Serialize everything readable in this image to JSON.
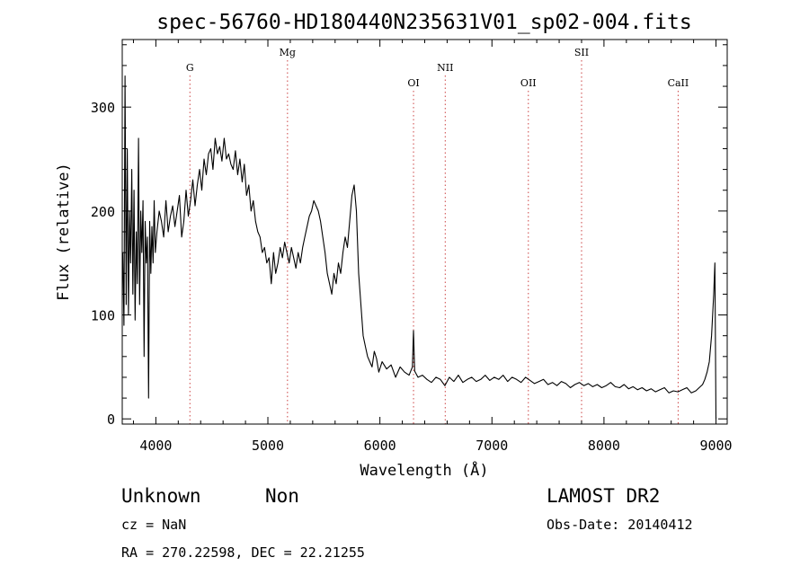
{
  "chart_data": {
    "type": "line",
    "title": "spec-56760-HD180440N235631V01_sp02-004.fits",
    "xlabel": "Wavelength (Å)",
    "ylabel": "Flux (relative)",
    "xlim": [
      3700,
      9100
    ],
    "ylim": [
      -5,
      365
    ],
    "x_ticks": [
      {
        "value": 4000,
        "label": "4000"
      },
      {
        "value": 5000,
        "label": "5000"
      },
      {
        "value": 6000,
        "label": "6000"
      },
      {
        "value": 7000,
        "label": "7000"
      },
      {
        "value": 8000,
        "label": "8000"
      },
      {
        "value": 9000,
        "label": "9000"
      }
    ],
    "y_ticks": [
      {
        "value": 0,
        "label": "0"
      },
      {
        "value": 100,
        "label": "100"
      },
      {
        "value": 200,
        "label": "200"
      },
      {
        "value": 300,
        "label": "300"
      }
    ],
    "grid": false,
    "lines": [
      {
        "label": "G",
        "wavelength": 4304,
        "label_level": 1
      },
      {
        "label": "Mg",
        "wavelength": 5175,
        "label_level": 0
      },
      {
        "label": "OI",
        "wavelength": 6300,
        "label_level": 2
      },
      {
        "label": "NII",
        "wavelength": 6583,
        "label_level": 1
      },
      {
        "label": "OII",
        "wavelength": 7325,
        "label_level": 2
      },
      {
        "label": "SII",
        "wavelength": 7800,
        "label_level": 0
      },
      {
        "label": "CaII",
        "wavelength": 8662,
        "label_level": 2
      }
    ],
    "series": [
      {
        "x": [
          3705,
          3715,
          3725,
          3735,
          3745,
          3755,
          3765,
          3775,
          3785,
          3795,
          3805,
          3815,
          3825,
          3835,
          3845,
          3855,
          3865,
          3875,
          3885,
          3895,
          3905,
          3915,
          3925,
          3935,
          3945,
          3955,
          3965,
          3975,
          3985,
          3995,
          4010,
          4030,
          4050,
          4070,
          4090,
          4110,
          4130,
          4150,
          4170,
          4190,
          4210,
          4230,
          4250,
          4270,
          4290,
          4310,
          4330,
          4350,
          4370,
          4390,
          4410,
          4430,
          4450,
          4470,
          4490,
          4510,
          4530,
          4550,
          4570,
          4590,
          4610,
          4630,
          4650,
          4670,
          4690,
          4710,
          4730,
          4750,
          4770,
          4790,
          4810,
          4830,
          4850,
          4870,
          4890,
          4910,
          4930,
          4950,
          4970,
          4990,
          5010,
          5030,
          5050,
          5070,
          5090,
          5110,
          5130,
          5150,
          5170,
          5190,
          5210,
          5230,
          5250,
          5270,
          5290,
          5310,
          5330,
          5350,
          5370,
          5390,
          5410,
          5430,
          5450,
          5470,
          5490,
          5510,
          5530,
          5550,
          5570,
          5590,
          5610,
          5630,
          5650,
          5670,
          5690,
          5710,
          5730,
          5750,
          5770,
          5790,
          5810,
          5830,
          5850,
          5870,
          5890,
          5910,
          5930,
          5950,
          5970,
          5990,
          6020,
          6060,
          6100,
          6140,
          6180,
          6220,
          6260,
          6290,
          6300,
          6310,
          6340,
          6380,
          6420,
          6460,
          6500,
          6540,
          6580,
          6620,
          6660,
          6700,
          6740,
          6780,
          6820,
          6860,
          6900,
          6940,
          6980,
          7020,
          7060,
          7100,
          7140,
          7180,
          7220,
          7260,
          7300,
          7340,
          7380,
          7420,
          7460,
          7500,
          7540,
          7580,
          7620,
          7660,
          7700,
          7740,
          7780,
          7820,
          7860,
          7900,
          7940,
          7980,
          8020,
          8060,
          8100,
          8140,
          8180,
          8220,
          8260,
          8300,
          8340,
          8380,
          8420,
          8460,
          8500,
          8540,
          8580,
          8620,
          8660,
          8700,
          8740,
          8780,
          8820,
          8850,
          8880,
          8900,
          8920,
          8940,
          8960,
          8980,
          8990,
          9000
        ],
        "y": [
          160,
          90,
          330,
          110,
          260,
          100,
          200,
          150,
          240,
          120,
          220,
          95,
          180,
          130,
          270,
          110,
          200,
          160,
          210,
          60,
          190,
          150,
          175,
          20,
          190,
          140,
          185,
          150,
          210,
          160,
          180,
          200,
          190,
          175,
          210,
          180,
          195,
          205,
          185,
          200,
          215,
          175,
          190,
          220,
          195,
          210,
          230,
          205,
          225,
          240,
          220,
          250,
          235,
          255,
          260,
          240,
          270,
          255,
          262,
          248,
          270,
          250,
          255,
          245,
          240,
          258,
          235,
          250,
          228,
          245,
          215,
          225,
          200,
          210,
          190,
          180,
          175,
          160,
          165,
          150,
          155,
          130,
          160,
          140,
          150,
          165,
          155,
          170,
          160,
          150,
          165,
          155,
          145,
          160,
          150,
          165,
          175,
          185,
          195,
          200,
          210,
          205,
          200,
          190,
          175,
          160,
          140,
          130,
          120,
          140,
          130,
          150,
          140,
          160,
          175,
          165,
          190,
          215,
          225,
          200,
          140,
          110,
          80,
          70,
          60,
          55,
          50,
          65,
          58,
          45,
          55,
          48,
          52,
          40,
          50,
          45,
          42,
          50,
          85,
          46,
          40,
          42,
          38,
          35,
          40,
          38,
          32,
          40,
          36,
          42,
          35,
          38,
          40,
          36,
          38,
          42,
          37,
          40,
          38,
          42,
          36,
          40,
          38,
          35,
          40,
          37,
          34,
          36,
          38,
          33,
          35,
          32,
          36,
          34,
          30,
          33,
          35,
          32,
          34,
          31,
          33,
          30,
          32,
          35,
          31,
          30,
          33,
          29,
          31,
          28,
          30,
          27,
          29,
          26,
          28,
          30,
          25,
          27,
          26,
          28,
          30,
          25,
          27,
          30,
          33,
          38,
          45,
          55,
          80,
          120,
          150,
          0
        ]
      }
    ]
  },
  "footer": {
    "object_class": "Unknown",
    "subclass": "Non",
    "survey": "LAMOST DR2",
    "cz": "cz = NaN",
    "obs_date": "Obs-Date: 20140412",
    "coords": "RA = 270.22598, DEC =  22.21255"
  }
}
